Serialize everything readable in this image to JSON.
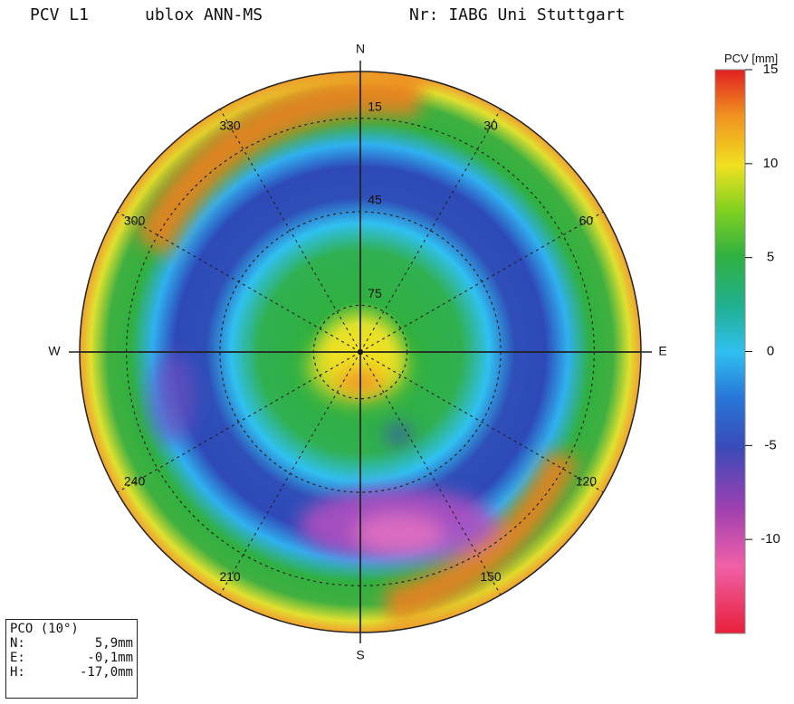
{
  "header": {
    "left": "PCV L1",
    "antenna": "ublox ANN-MS",
    "right": "Nr: IABG Uni Stuttgart"
  },
  "pco_box": {
    "title": "PCO (10°)",
    "rows": [
      {
        "label": "N:",
        "value": "5,9mm"
      },
      {
        "label": "E:",
        "value": "-0,1mm"
      },
      {
        "label": "H:",
        "value": "-17,0mm"
      }
    ]
  },
  "chart_data": {
    "type": "heatmap",
    "projection": "polar-skyplot",
    "cardinal_labels": [
      "N",
      "E",
      "S",
      "W"
    ],
    "azimuth_labels": [
      "30",
      "60",
      "120",
      "150",
      "210",
      "240",
      "300",
      "330"
    ],
    "elevation_labels": [
      "15",
      "45",
      "75"
    ],
    "elevation_circles_deg": [
      15,
      45,
      75
    ],
    "azimuth_spokes_deg": [
      0,
      30,
      60,
      90,
      120,
      150,
      180,
      210,
      240,
      270,
      300,
      330
    ],
    "colorbar": {
      "label": "PCV [mm]",
      "ticks": [
        "15",
        "10",
        "5",
        "0",
        "-5",
        "-10"
      ],
      "tick_values": [
        15,
        10,
        5,
        0,
        -5,
        -10
      ],
      "range": [
        -15,
        15
      ],
      "colors": [
        "#e8203a",
        "#f060a8",
        "#a040b0",
        "#3a4ab8",
        "#2878d8",
        "#30c0f0",
        "#20b060",
        "#30b040",
        "#80d020",
        "#f0e020",
        "#f09020",
        "#e02020"
      ]
    },
    "approx_field_mm": [
      {
        "region": "zenith center",
        "value": 13
      },
      {
        "region": "inner plateau",
        "value": 6
      },
      {
        "region": "mid ring",
        "value": -3
      },
      {
        "region": "blue ring",
        "value": -5
      },
      {
        "region": "south-southeast trough",
        "value": -10
      },
      {
        "region": "outer green band",
        "value": 5
      },
      {
        "region": "horizon edge northwest",
        "value": 14
      },
      {
        "region": "horizon edge southeast",
        "value": 14
      }
    ]
  }
}
